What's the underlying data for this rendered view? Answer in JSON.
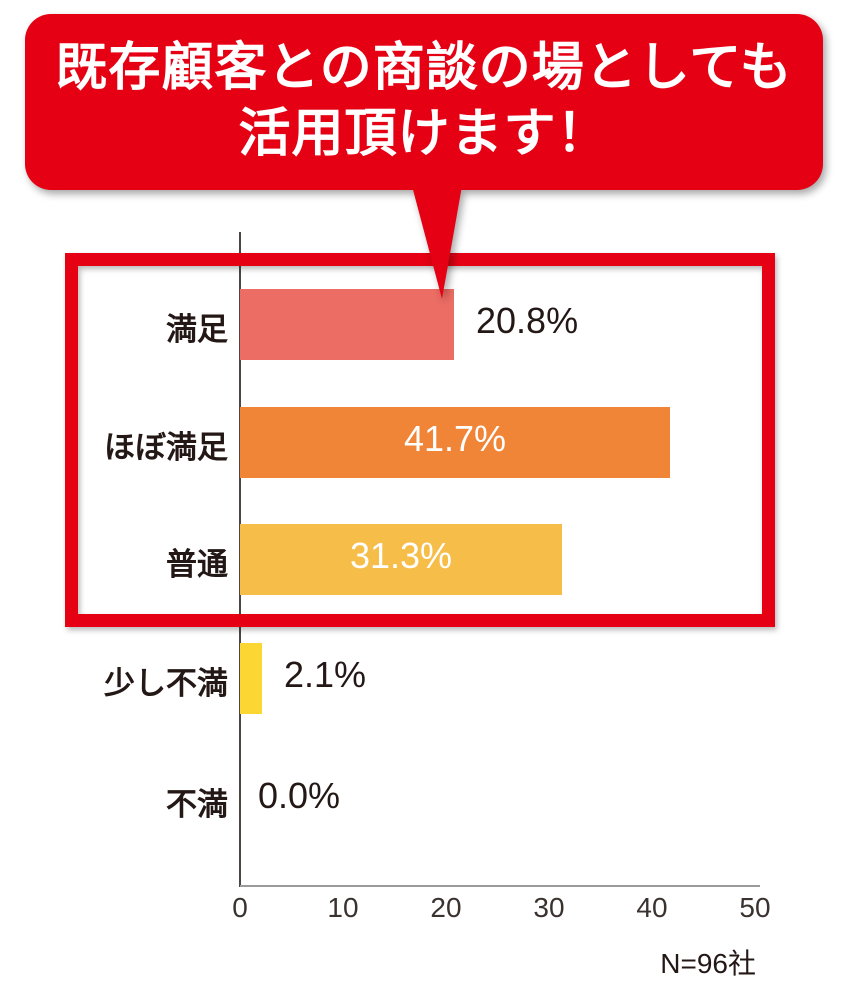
{
  "callout": {
    "line1": "既存顧客との商談の場としても",
    "line2": "活用頂けます！",
    "bg_color": "#e50014",
    "text_color": "#ffffff"
  },
  "chart_data": {
    "type": "bar",
    "orientation": "horizontal",
    "title": "",
    "categories": [
      "満足",
      "ほぼ満足",
      "普通",
      "少し不満",
      "不満"
    ],
    "values": [
      20.8,
      41.7,
      31.3,
      2.1,
      0.0
    ],
    "value_labels": [
      "20.8%",
      "41.7%",
      "31.3%",
      "2.1%",
      "0.0%"
    ],
    "value_label_position": [
      "outside",
      "inside",
      "inside",
      "outside",
      "outside"
    ],
    "bar_colors": [
      "#ec6d64",
      "#f08437",
      "#f6bd48",
      "#fcd733",
      "#fcd733"
    ],
    "xlim": [
      0,
      50
    ],
    "x_ticks": [
      0,
      10,
      20,
      30,
      40,
      50
    ],
    "grid": false,
    "legend": false,
    "sample_note": "N=96社",
    "highlighted_categories": [
      "満足",
      "ほぼ満足",
      "普通"
    ]
  },
  "colors": {
    "accent_red": "#e50014",
    "text_dark": "#231815",
    "tick_text": "#3a322e",
    "axis_vertical": "#4c4742",
    "axis_horizontal": "#9b9b9b"
  }
}
